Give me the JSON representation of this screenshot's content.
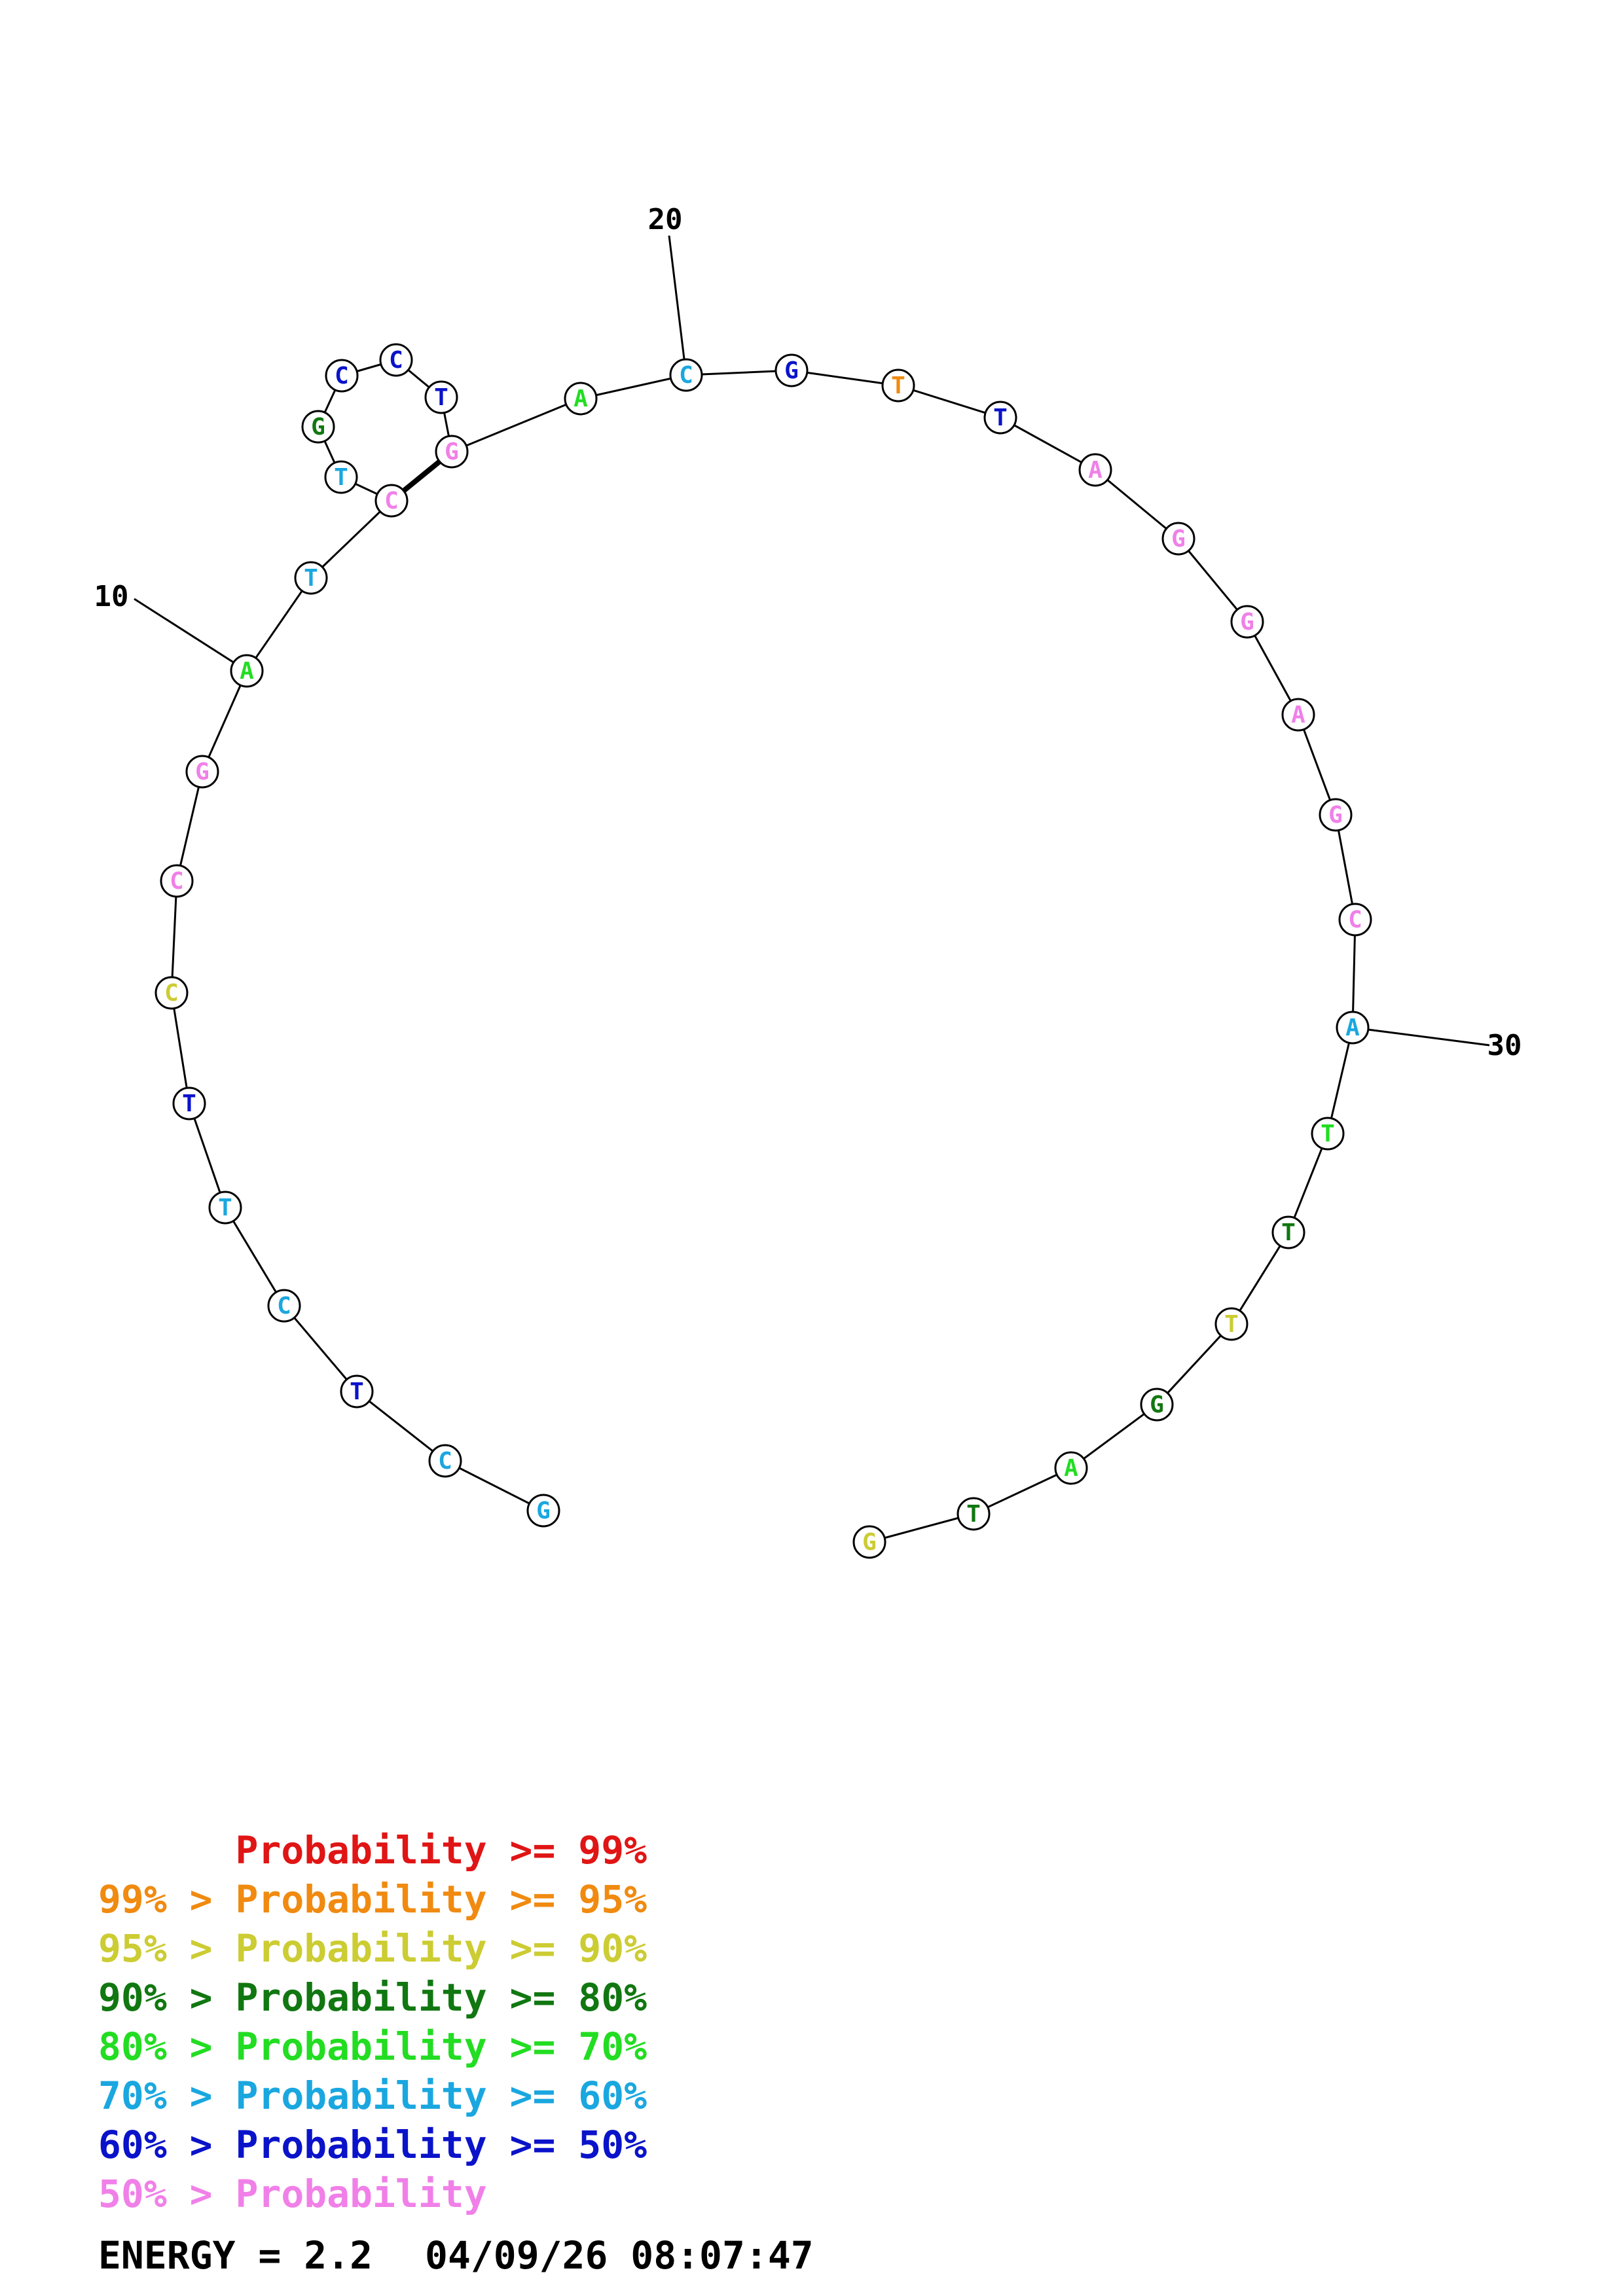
{
  "diagram": {
    "type": "rna-secondary-structure",
    "nucleotides": [
      {
        "n": 1,
        "base": "G",
        "color": "#1AA7E0"
      },
      {
        "n": 2,
        "base": "C",
        "color": "#1AA7E0"
      },
      {
        "n": 3,
        "base": "T",
        "color": "#0A13C9"
      },
      {
        "n": 4,
        "base": "C",
        "color": "#1AA7E0"
      },
      {
        "n": 5,
        "base": "T",
        "color": "#1AA7E0"
      },
      {
        "n": 6,
        "base": "T",
        "color": "#0A13C9"
      },
      {
        "n": 7,
        "base": "C",
        "color": "#CCCC33"
      },
      {
        "n": 8,
        "base": "C",
        "color": "#F080E8"
      },
      {
        "n": 9,
        "base": "G",
        "color": "#F080E8"
      },
      {
        "n": 10,
        "base": "A",
        "color": "#22DD22"
      },
      {
        "n": 11,
        "base": "T",
        "color": "#1AA7E0"
      },
      {
        "n": 12,
        "base": "C",
        "color": "#F080E8"
      },
      {
        "n": 13,
        "base": "T",
        "color": "#1AA7E0"
      },
      {
        "n": 14,
        "base": "G",
        "color": "#117711"
      },
      {
        "n": 15,
        "base": "C",
        "color": "#0A13C9"
      },
      {
        "n": 16,
        "base": "C",
        "color": "#0A13C9"
      },
      {
        "n": 17,
        "base": "T",
        "color": "#0A13C9"
      },
      {
        "n": 18,
        "base": "G",
        "color": "#F080E8"
      },
      {
        "n": 19,
        "base": "A",
        "color": "#22DD22"
      },
      {
        "n": 20,
        "base": "C",
        "color": "#1AA7E0"
      },
      {
        "n": 21,
        "base": "G",
        "color": "#0A13C9"
      },
      {
        "n": 22,
        "base": "T",
        "color": "#F08A10"
      },
      {
        "n": 23,
        "base": "T",
        "color": "#0A13C9"
      },
      {
        "n": 24,
        "base": "A",
        "color": "#F080E8"
      },
      {
        "n": 25,
        "base": "G",
        "color": "#F080E8"
      },
      {
        "n": 26,
        "base": "G",
        "color": "#F080E8"
      },
      {
        "n": 27,
        "base": "A",
        "color": "#F080E8"
      },
      {
        "n": 28,
        "base": "G",
        "color": "#F080E8"
      },
      {
        "n": 29,
        "base": "C",
        "color": "#F080E8"
      },
      {
        "n": 30,
        "base": "A",
        "color": "#1AA7E0"
      },
      {
        "n": 31,
        "base": "T",
        "color": "#22DD22"
      },
      {
        "n": 32,
        "base": "T",
        "color": "#117711"
      },
      {
        "n": 33,
        "base": "T",
        "color": "#CCCC33"
      },
      {
        "n": 34,
        "base": "G",
        "color": "#117711"
      },
      {
        "n": 35,
        "base": "A",
        "color": "#22DD22"
      },
      {
        "n": 36,
        "base": "T",
        "color": "#117711"
      },
      {
        "n": 37,
        "base": "G",
        "color": "#CCCC33"
      }
    ],
    "base_pairs": [
      [
        12,
        18
      ]
    ],
    "position_labels": [
      {
        "n": 10,
        "text": "10"
      },
      {
        "n": 20,
        "text": "20"
      },
      {
        "n": 30,
        "text": "30"
      }
    ]
  },
  "legend": [
    {
      "prefix": "",
      "text": "Probability >= 99%",
      "color": "#E01515"
    },
    {
      "prefix": "99% > ",
      "text": "Probability >= 95%",
      "color": "#F08A10"
    },
    {
      "prefix": "95% > ",
      "text": "Probability >= 90%",
      "color": "#CCCC33"
    },
    {
      "prefix": "90% > ",
      "text": "Probability >= 80%",
      "color": "#117711"
    },
    {
      "prefix": "80% > ",
      "text": "Probability >= 70%",
      "color": "#22DD22"
    },
    {
      "prefix": "70% > ",
      "text": "Probability >= 60%",
      "color": "#1AA7E0"
    },
    {
      "prefix": "60% > ",
      "text": "Probability >= 50%",
      "color": "#0A13C9"
    },
    {
      "prefix": "50% > ",
      "text": "Probability",
      "color": "#F080E8"
    }
  ],
  "footer": {
    "energy": "ENERGY = 2.2",
    "timestamp": "04/09/26 08:07:47"
  }
}
